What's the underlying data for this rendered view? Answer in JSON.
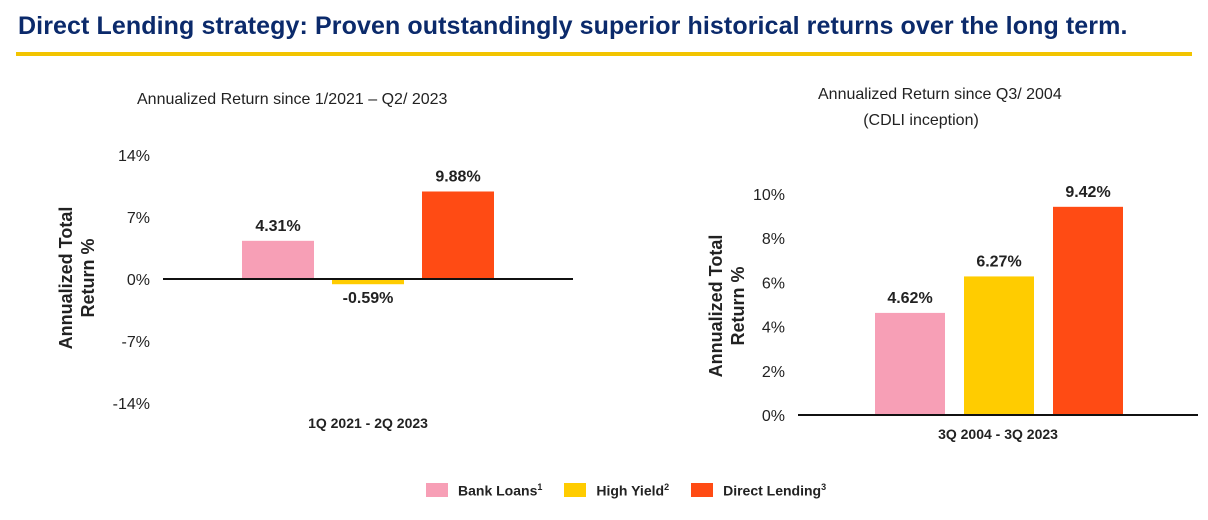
{
  "page": {
    "title": "Direct Lending strategy: Proven outstandingly superior historical returns over the long term."
  },
  "colors": {
    "title": "#0b2a6b",
    "rule": "#f2c400",
    "bank_loans": "#f79fb6",
    "high_yield": "#ffcc00",
    "direct_lending": "#ff4b14"
  },
  "legend": [
    {
      "label": "Bank Loans",
      "sup": "1",
      "color": "#f79fb6"
    },
    {
      "label": "High Yield",
      "sup": "2",
      "color": "#ffcc00"
    },
    {
      "label": "Direct Lending",
      "sup": "3",
      "color": "#ff4b14"
    }
  ],
  "chart_data": [
    {
      "type": "bar",
      "title": "Annualized Return since 1/2021 – Q2/ 2023",
      "ylabel_lines": [
        "Annualized Total",
        "Return %"
      ],
      "categories": [
        "1Q 2021 - 2Q 2023"
      ],
      "series": [
        {
          "name": "Bank Loans",
          "values": [
            4.31
          ],
          "label": "4.31%"
        },
        {
          "name": "High Yield",
          "values": [
            -0.59
          ],
          "label": "-0.59%"
        },
        {
          "name": "Direct Lending",
          "values": [
            9.88
          ],
          "label": "9.88%"
        }
      ],
      "ylim": [
        -14,
        14
      ],
      "yticks": [
        14,
        7,
        0,
        -7,
        -14
      ],
      "ytick_labels": [
        "14%",
        "7%",
        "0%",
        "-7%",
        "-14%"
      ]
    },
    {
      "type": "bar",
      "title_lines": [
        "Annualized Return since Q3/ 2004",
        "(CDLI inception)"
      ],
      "ylabel_lines": [
        "Annualized Total",
        "Return %"
      ],
      "categories": [
        "3Q 2004 - 3Q 2023"
      ],
      "series": [
        {
          "name": "Bank Loans",
          "values": [
            4.62
          ],
          "label": "4.62%"
        },
        {
          "name": "High Yield",
          "values": [
            6.27
          ],
          "label": "6.27%"
        },
        {
          "name": "Direct Lending",
          "values": [
            9.42
          ],
          "label": "9.42%"
        }
      ],
      "ylim": [
        0,
        10
      ],
      "yticks": [
        10,
        8,
        6,
        4,
        2,
        0
      ],
      "ytick_labels": [
        "10%",
        "8%",
        "6%",
        "4%",
        "2%",
        "0%"
      ]
    }
  ]
}
